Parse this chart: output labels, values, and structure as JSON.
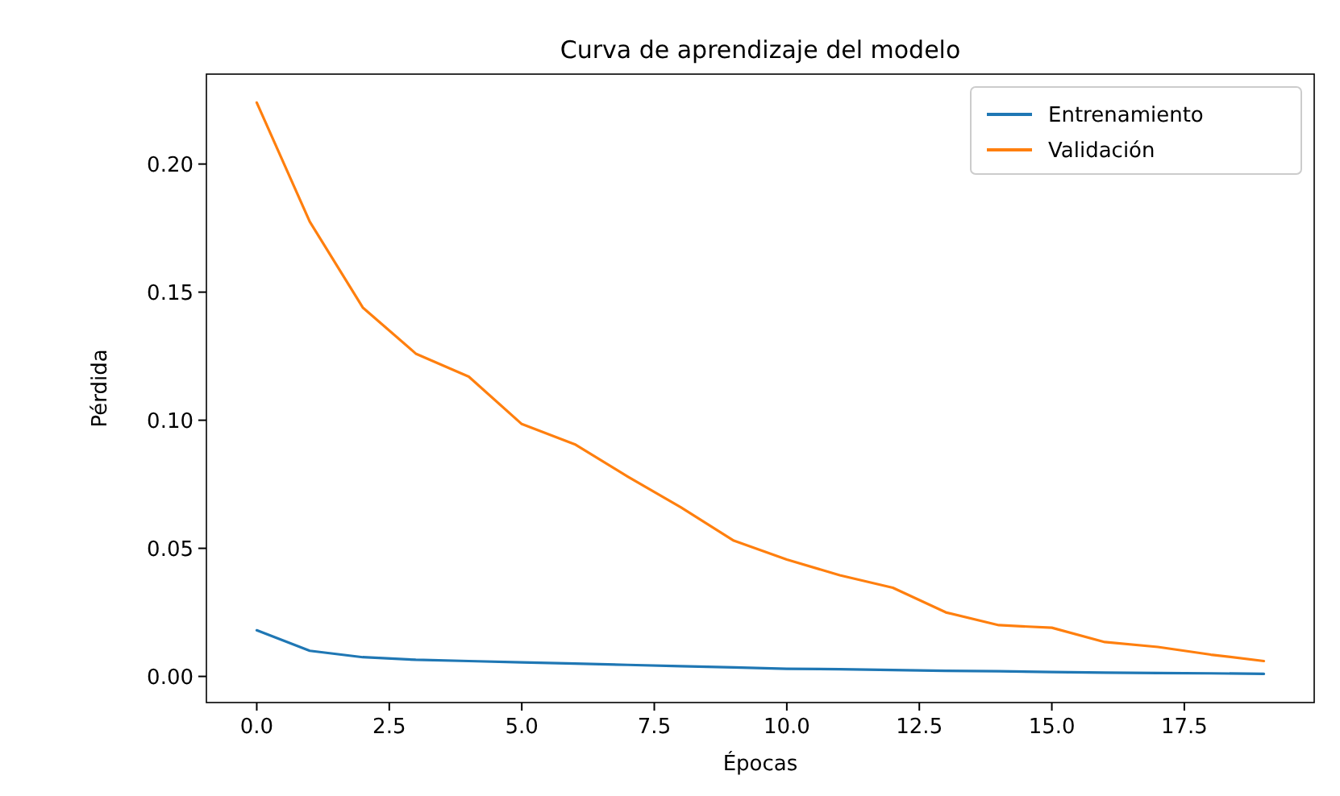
{
  "chart_data": {
    "type": "line",
    "title": "Curva de aprendizaje del modelo",
    "xlabel": "Épocas",
    "ylabel": "Pérdida",
    "x": [
      0,
      1,
      2,
      3,
      4,
      5,
      6,
      7,
      8,
      9,
      10,
      11,
      12,
      13,
      14,
      15,
      16,
      17,
      18,
      19
    ],
    "series": [
      {
        "name": "Entrenamiento",
        "color": "#1f77b4",
        "values": [
          0.018,
          0.01,
          0.0075,
          0.0065,
          0.006,
          0.0055,
          0.005,
          0.0045,
          0.004,
          0.0035,
          0.003,
          0.0028,
          0.0025,
          0.0022,
          0.002,
          0.0017,
          0.0015,
          0.0013,
          0.0012,
          0.001
        ]
      },
      {
        "name": "Validación",
        "color": "#ff7f0e",
        "values": [
          0.224,
          0.1775,
          0.144,
          0.126,
          0.117,
          0.0985,
          0.0906,
          0.078,
          0.066,
          0.053,
          0.0456,
          0.0395,
          0.0346,
          0.025,
          0.02,
          0.019,
          0.0134,
          0.0115,
          0.0085,
          0.006
        ]
      }
    ],
    "xlim": [
      -0.95,
      19.95
    ],
    "ylim": [
      -0.0102,
      0.2351
    ],
    "xticks": [
      {
        "value": 0,
        "label": "0.0"
      },
      {
        "value": 2.5,
        "label": "2.5"
      },
      {
        "value": 5,
        "label": "5.0"
      },
      {
        "value": 7.5,
        "label": "7.5"
      },
      {
        "value": 10,
        "label": "10.0"
      },
      {
        "value": 12.5,
        "label": "12.5"
      },
      {
        "value": 15,
        "label": "15.0"
      },
      {
        "value": 17.5,
        "label": "17.5"
      }
    ],
    "yticks": [
      {
        "value": 0,
        "label": "0.00"
      },
      {
        "value": 0.05,
        "label": "0.05"
      },
      {
        "value": 0.1,
        "label": "0.10"
      },
      {
        "value": 0.15,
        "label": "0.15"
      },
      {
        "value": 0.2,
        "label": "0.20"
      }
    ],
    "legend": "top right",
    "marker": "none",
    "line_style": "solid"
  }
}
